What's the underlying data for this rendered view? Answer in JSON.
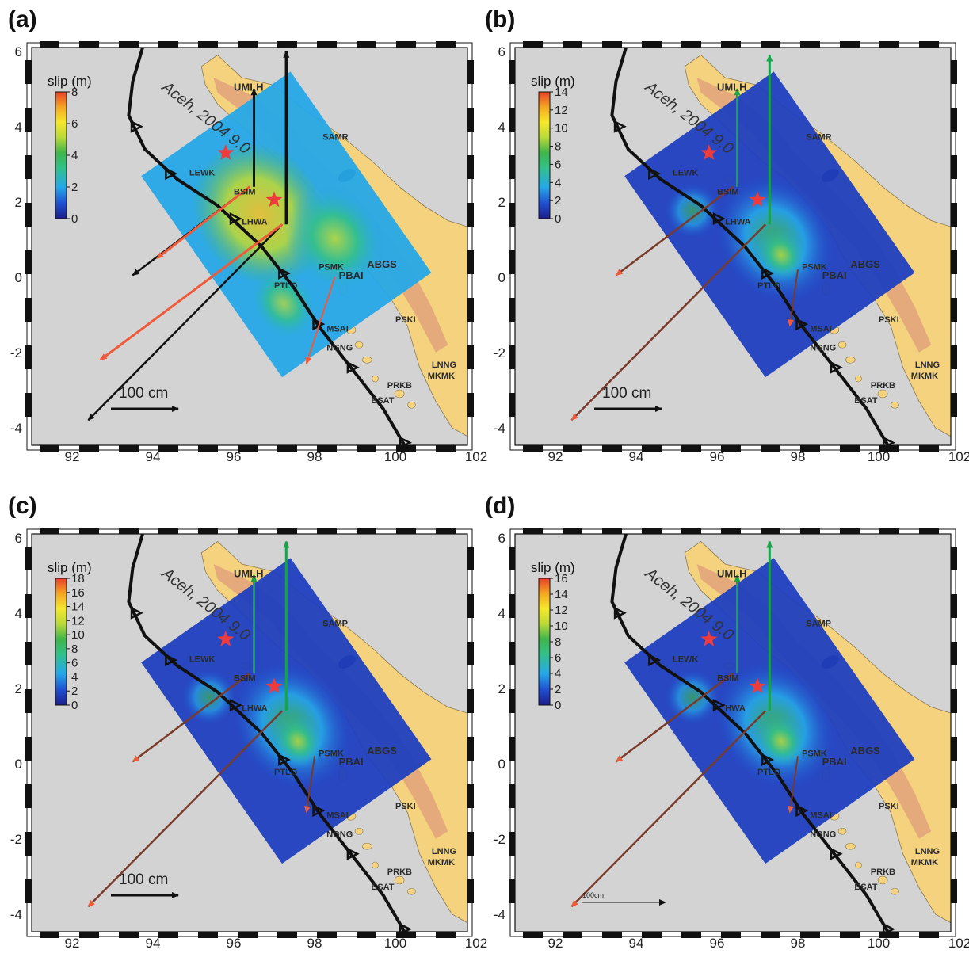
{
  "figure": {
    "colors": {
      "sea": "#d3d3d3",
      "land": "#f4d27e",
      "relief": "#d9897a",
      "fault": "#111111",
      "horizontal_obs": "#111111",
      "horizontal_model": "#ee5a3a",
      "vertical_obs": "#16a34a",
      "hypocenter_star": "#ef3b3b",
      "slip_colormap": [
        "#1d1d8a",
        "#1f4fd0",
        "#26a8e8",
        "#33c08a",
        "#3fb54a",
        "#b9d83a",
        "#f5e82c",
        "#f5a623",
        "#e8402a"
      ]
    },
    "event_label": "Aceh, 2004 9.0",
    "x_ticks": [
      "92",
      "94",
      "96",
      "98",
      "100",
      "102"
    ],
    "y_ticks": [
      "6",
      "4",
      "2",
      "0",
      "-2",
      "-4"
    ],
    "stations": {
      "UMLH": "UMLH",
      "SAMR": "SAMR",
      "SAMP": "SAMP",
      "LEWK": "LEWK",
      "BSIM": "BSIM",
      "LHWA": "LHWA",
      "HWA": "HWA",
      "PSMK": "PSMK",
      "PTLO": "PTLO",
      "PBAI": "PBAI",
      "ABGS": "ABGS",
      "MSAI": "MSAI",
      "NGNG": "NGNG",
      "PSKI": "PSKI",
      "LNNG": "LNNG",
      "MKMK": "MKMK",
      "PRKB": "PRKB",
      "BSAT": "BSAT"
    },
    "panels": [
      {
        "label": "(a)",
        "colorbar_title": "slip (m)",
        "colorbar_ticks": [
          "8",
          "6",
          "4",
          "2",
          "0"
        ],
        "scale_label": "100 cm",
        "slip_max_m": 8
      },
      {
        "label": "(b)",
        "colorbar_title": "slip (m)",
        "colorbar_ticks": [
          "14",
          "12",
          "10",
          "8",
          "6",
          "4",
          "2",
          "0"
        ],
        "scale_label": "100 cm",
        "slip_max_m": 14
      },
      {
        "label": "(c)",
        "colorbar_title": "slip (m)",
        "colorbar_ticks": [
          "18",
          "16",
          "14",
          "12",
          "10",
          "8",
          "6",
          "4",
          "2",
          "0"
        ],
        "scale_label": "100 cm",
        "slip_max_m": 18
      },
      {
        "label": "(d)",
        "colorbar_title": "slip (m)",
        "colorbar_ticks": [
          "16",
          "14",
          "12",
          "10",
          "8",
          "6",
          "4",
          "2",
          "0"
        ],
        "scale_label": "100cm",
        "slip_max_m": 16
      }
    ]
  }
}
